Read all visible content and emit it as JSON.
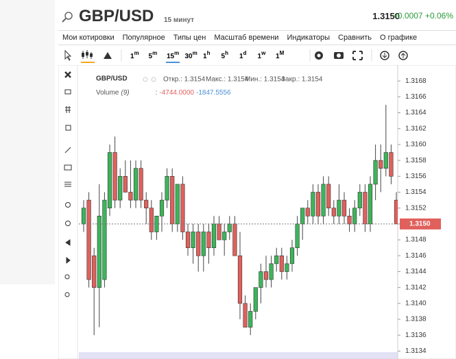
{
  "header": {
    "symbol": "GBP/USD",
    "interval": "15 минут",
    "price": "1.3150",
    "change": "+0.0007",
    "change_pct": "+0.06%"
  },
  "menu": [
    "Мои котировки",
    "Популярное",
    "Типы цен",
    "Масштаб времени",
    "Индикаторы",
    "Сравнить",
    "О графике"
  ],
  "intervals": [
    {
      "num": "1",
      "unit": "m"
    },
    {
      "num": "5",
      "unit": "m"
    },
    {
      "num": "15",
      "unit": "m"
    },
    {
      "num": "30",
      "unit": "m"
    },
    {
      "num": "1",
      "unit": "h"
    },
    {
      "num": "5",
      "unit": "h"
    },
    {
      "num": "1",
      "unit": "d"
    },
    {
      "num": "1",
      "unit": "w"
    },
    {
      "num": "1",
      "unit": "M"
    }
  ],
  "active_interval": 2,
  "chart_data": {
    "type": "candlestick",
    "title": "GBP/USD",
    "ohlc_legend": [
      "Откр.: 1.3154",
      "Макс.: 1.3154",
      "Мин.: 1.3154",
      "Закр.: 1.3154"
    ],
    "volume_label": "Volume",
    "volume_param": "(9)",
    "volume_sep": ":",
    "volume_values": [
      "-4744.0000",
      "-1847.5556"
    ],
    "up_color": "#3cb55a",
    "down_color": "#e0605c",
    "open": [
      1.315,
      1.3153,
      1.3146,
      1.3142,
      1.3143,
      1.3152,
      1.3159,
      1.3153,
      1.3156,
      1.3154,
      1.3153,
      1.3157,
      1.3153,
      1.3152,
      1.3149,
      1.3151,
      1.3153,
      1.3156,
      1.315,
      1.3155,
      1.3149,
      1.3147,
      1.3149,
      1.3146,
      1.3149,
      1.3147,
      1.315,
      1.3148,
      1.3149,
      1.315,
      1.3146,
      1.314,
      1.3137,
      1.3139,
      1.3142,
      1.3144,
      1.3143,
      1.3145,
      1.3146,
      1.3144,
      1.3145,
      1.3147,
      1.315,
      1.3152,
      1.3151,
      1.3154,
      1.3151,
      1.3155,
      1.3152,
      1.3151,
      1.3153,
      1.3151,
      1.315,
      1.3152,
      1.3154,
      1.315,
      1.3155,
      1.3158,
      1.3157,
      1.3159,
      1.3153
    ],
    "high": [
      1.3153,
      1.3154,
      1.3147,
      1.3155,
      1.3154,
      1.316,
      1.3161,
      1.3157,
      1.3158,
      1.3158,
      1.3158,
      1.3158,
      1.3154,
      1.3153,
      1.3151,
      1.3154,
      1.3157,
      1.3157,
      1.3155,
      1.3156,
      1.315,
      1.315,
      1.315,
      1.315,
      1.315,
      1.3151,
      1.3151,
      1.315,
      1.3151,
      1.3151,
      1.3149,
      1.3141,
      1.314,
      1.3142,
      1.3145,
      1.3146,
      1.3146,
      1.3147,
      1.3147,
      1.3146,
      1.3148,
      1.3151,
      1.3152,
      1.3153,
      1.3155,
      1.3155,
      1.3156,
      1.3156,
      1.3153,
      1.3155,
      1.3154,
      1.3152,
      1.3153,
      1.3155,
      1.3155,
      1.3156,
      1.316,
      1.316,
      1.3165,
      1.316,
      1.3154
    ],
    "low": [
      1.3149,
      1.3142,
      1.3136,
      1.3137,
      1.3142,
      1.3151,
      1.3152,
      1.3152,
      1.3154,
      1.3152,
      1.3152,
      1.3152,
      1.315,
      1.3148,
      1.3148,
      1.3149,
      1.3152,
      1.3149,
      1.3149,
      1.3148,
      1.3146,
      1.3145,
      1.3144,
      1.3144,
      1.3145,
      1.3146,
      1.3148,
      1.3146,
      1.3148,
      1.3146,
      1.3138,
      1.3137,
      1.3136,
      1.3138,
      1.314,
      1.3142,
      1.3142,
      1.3144,
      1.3143,
      1.3143,
      1.3144,
      1.3146,
      1.3148,
      1.315,
      1.315,
      1.315,
      1.315,
      1.3151,
      1.315,
      1.315,
      1.315,
      1.3149,
      1.3149,
      1.3151,
      1.3149,
      1.3149,
      1.3153,
      1.3154,
      1.3156,
      1.3155,
      1.315
    ],
    "close": [
      1.3152,
      1.3143,
      1.3142,
      1.3151,
      1.3153,
      1.3159,
      1.3153,
      1.3156,
      1.3154,
      1.3153,
      1.3157,
      1.3153,
      1.3152,
      1.3149,
      1.3151,
      1.3153,
      1.3156,
      1.315,
      1.3155,
      1.3149,
      1.3147,
      1.3149,
      1.3146,
      1.3149,
      1.3147,
      1.315,
      1.3148,
      1.3149,
      1.315,
      1.3146,
      1.314,
      1.3137,
      1.3139,
      1.3142,
      1.3144,
      1.3143,
      1.3145,
      1.3146,
      1.3144,
      1.3145,
      1.3147,
      1.315,
      1.3152,
      1.3151,
      1.3154,
      1.3151,
      1.3155,
      1.3152,
      1.3151,
      1.3153,
      1.3151,
      1.315,
      1.3152,
      1.3154,
      1.315,
      1.3155,
      1.3158,
      1.3157,
      1.3159,
      1.3156,
      1.315
    ],
    "last_price": 1.315,
    "last_price_label": "1.3150",
    "ylim": [
      1.3133,
      1.317
    ],
    "yticks": [
      1.3134,
      1.3136,
      1.3138,
      {
        "value": 1.314,
        "label": "1.3140"
      },
      1.3142,
      1.3144,
      1.3146,
      1.3148,
      {
        "value": 1.315,
        "label": "1.3150"
      },
      1.3152,
      1.3154,
      1.3156,
      1.3158,
      {
        "value": 1.316,
        "label": "1.3160"
      },
      1.3162,
      1.3164,
      1.3166,
      1.3168
    ]
  }
}
